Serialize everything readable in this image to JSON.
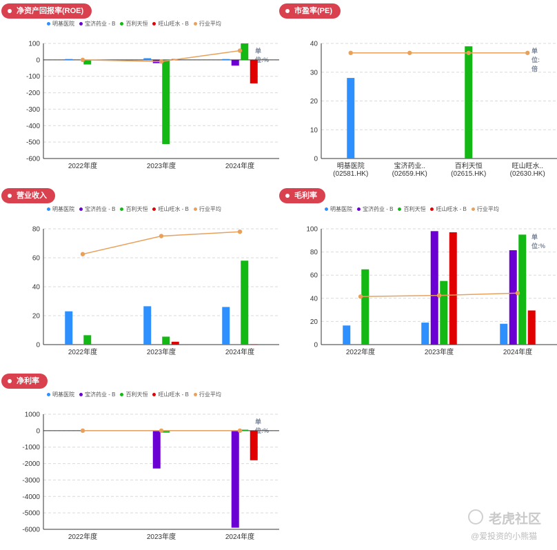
{
  "legend": [
    {
      "name": "明基医院",
      "color": "#2e8fff"
    },
    {
      "name": "宝济药业 - B",
      "color": "#6a00d1"
    },
    {
      "name": "百利天恒",
      "color": "#14b814"
    },
    {
      "name": "旺山旺水 - B",
      "color": "#e00000"
    },
    {
      "name": "行业平均",
      "color": "#e8a15a"
    }
  ],
  "watermark": {
    "brand": "老虎社区",
    "user": "@爱投资的小熊猫"
  },
  "chart_data": [
    {
      "id": "roe",
      "type": "bar",
      "title": "净资产回报率(ROE)",
      "unit": "单位:%",
      "categories": [
        "2022年度",
        "2023年度",
        "2024年度"
      ],
      "ylim": [
        -600,
        100
      ],
      "yticks": [
        100,
        0,
        -100,
        -200,
        -300,
        -400,
        -500,
        -600
      ],
      "series": [
        {
          "name": "明基医院",
          "values": [
            5,
            10,
            5
          ]
        },
        {
          "name": "宝济药业 - B",
          "values": [
            null,
            -20,
            -35
          ]
        },
        {
          "name": "百利天恒",
          "values": [
            -28,
            -512,
            100
          ]
        },
        {
          "name": "旺山旺水 - B",
          "values": [
            null,
            5,
            -143
          ]
        }
      ],
      "line": {
        "name": "行业平均",
        "values": [
          0,
          -10,
          56
        ]
      },
      "grid": true
    },
    {
      "id": "pe",
      "type": "bar",
      "title": "市盈率(PE)",
      "unit": "单位:倍",
      "categories": [
        "明基医院\n(02581.HK)",
        "宝济药业..\n(02659.HK)",
        "百利天恒\n(02615.HK)",
        "旺山旺水..\n(02630.HK)"
      ],
      "ylim": [
        0,
        40
      ],
      "yticks": [
        40,
        30,
        20,
        10,
        0
      ],
      "bars": [
        28,
        null,
        39,
        null
      ],
      "line": {
        "name": "行业平均",
        "values": [
          36.7,
          36.7,
          36.7,
          36.7
        ]
      },
      "grid": true
    },
    {
      "id": "revenue",
      "type": "bar",
      "title": "营业收入",
      "unit": "",
      "categories": [
        "2022年度",
        "2023年度",
        "2024年度"
      ],
      "ylim": [
        0,
        80
      ],
      "yticks": [
        80,
        60,
        40,
        20,
        0
      ],
      "series": [
        {
          "name": "明基医院",
          "values": [
            23,
            26.5,
            26
          ]
        },
        {
          "name": "宝济药业 - B",
          "values": [
            null,
            null,
            null
          ]
        },
        {
          "name": "百利天恒",
          "values": [
            6.5,
            5.5,
            58
          ]
        },
        {
          "name": "旺山旺水 - B",
          "values": [
            null,
            2,
            0.3
          ]
        }
      ],
      "line": {
        "name": "行业平均",
        "values": [
          62.5,
          75,
          78
        ]
      },
      "grid": true
    },
    {
      "id": "gross",
      "type": "bar",
      "title": "毛利率",
      "unit": "单位:%",
      "categories": [
        "2022年度",
        "2023年度",
        "2024年度"
      ],
      "ylim": [
        0,
        100
      ],
      "yticks": [
        100,
        80,
        60,
        40,
        20,
        0
      ],
      "series": [
        {
          "name": "明基医院",
          "values": [
            16.5,
            19,
            18
          ]
        },
        {
          "name": "宝济药业 - B",
          "values": [
            null,
            98,
            81.5
          ]
        },
        {
          "name": "百利天恒",
          "values": [
            65,
            55,
            95
          ]
        },
        {
          "name": "旺山旺水 - B",
          "values": [
            null,
            97,
            29.5
          ]
        }
      ],
      "line": {
        "name": "行业平均",
        "values": [
          41.5,
          42.5,
          44.5
        ]
      },
      "grid": true
    },
    {
      "id": "netmargin",
      "type": "bar",
      "title": "净利率",
      "unit": "单位:%",
      "categories": [
        "2022年度",
        "2023年度",
        "2024年度"
      ],
      "ylim": [
        -6000,
        1000
      ],
      "yticks": [
        1000,
        0,
        -1000,
        -2000,
        -3000,
        -4000,
        -5000,
        -6000
      ],
      "series": [
        {
          "name": "明基医院",
          "values": [
            null,
            null,
            null
          ]
        },
        {
          "name": "宝济药业 - B",
          "values": [
            null,
            -2300,
            -5900
          ]
        },
        {
          "name": "百利天恒",
          "values": [
            null,
            -120,
            60
          ]
        },
        {
          "name": "旺山旺水 - B",
          "values": [
            null,
            null,
            -1800
          ]
        }
      ],
      "line": {
        "name": "行业平均",
        "values": [
          0,
          0,
          0
        ]
      },
      "grid": true
    }
  ]
}
